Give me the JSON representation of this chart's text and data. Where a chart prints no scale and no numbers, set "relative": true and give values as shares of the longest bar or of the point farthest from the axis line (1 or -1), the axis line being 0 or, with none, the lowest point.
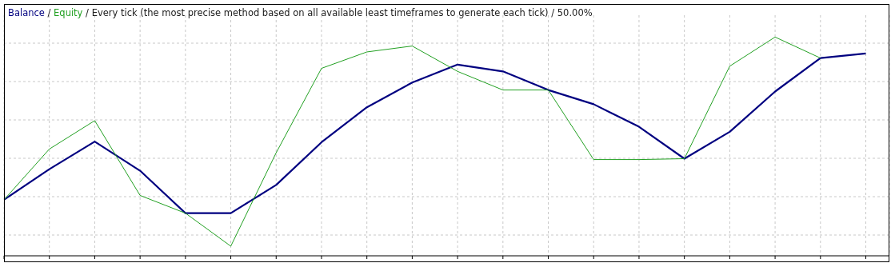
{
  "chart_data": {
    "type": "line",
    "title": "Every tick (the most precise method based on all available least timeframes to generate each tick) / 50.00%",
    "relative": true,
    "categories": [
      null,
      null,
      null,
      null,
      null,
      null,
      null,
      null,
      null,
      null,
      null,
      null,
      null,
      null,
      null,
      null,
      null,
      null,
      null,
      null
    ],
    "series": [
      {
        "name": "Balance",
        "color": "#000080",
        "values": [
          0.256,
          0.396,
          0.522,
          0.389,
          0.195,
          0.195,
          0.324,
          0.519,
          0.679,
          0.792,
          0.874,
          0.843,
          0.758,
          0.693,
          0.59,
          0.444,
          0.567,
          0.751,
          0.904,
          0.925
        ]
      },
      {
        "name": "Equity",
        "color": "#22a022",
        "values": [
          0.256,
          0.488,
          0.618,
          0.276,
          0.195,
          0.044,
          0.471,
          0.857,
          0.932,
          0.959,
          0.843,
          0.758,
          0.758,
          0.44,
          0.44,
          0.444,
          0.867,
          1.0,
          0.904,
          null
        ]
      }
    ],
    "annotations": [
      "/",
      "/"
    ],
    "grid": true,
    "legend": "top left",
    "tick_labels": false,
    "marker": "none",
    "line_style": "solid"
  }
}
